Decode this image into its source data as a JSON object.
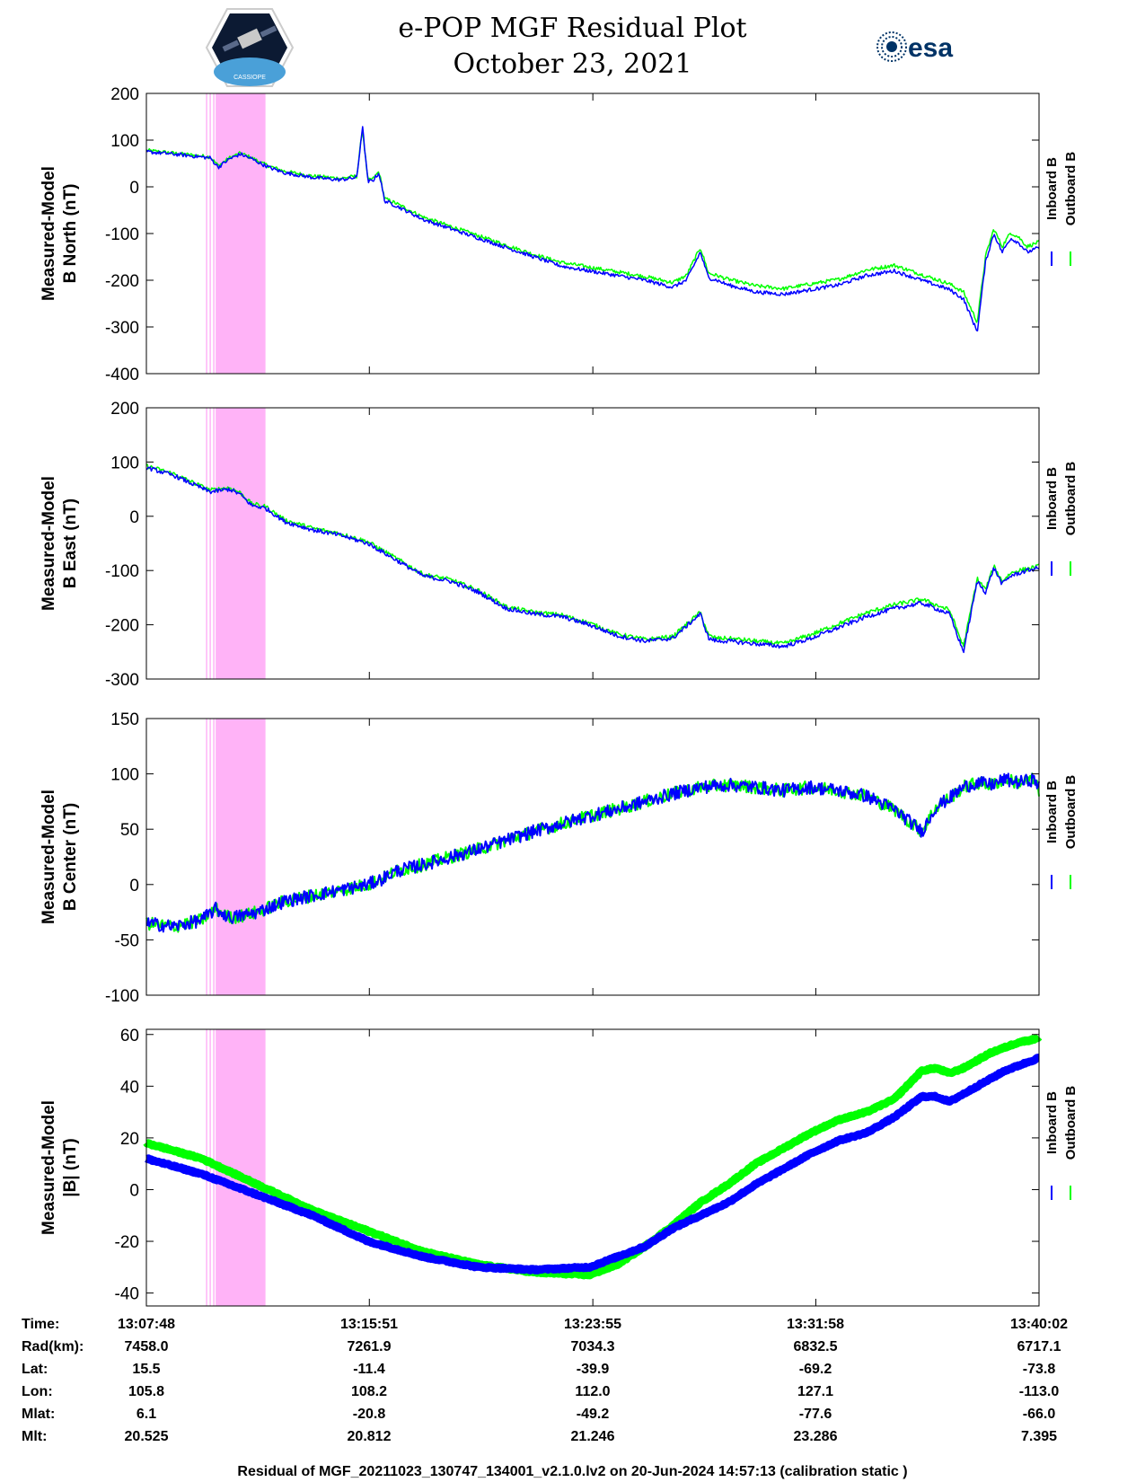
{
  "header": {
    "title_line1": "e-POP MGF Residual Plot",
    "title_line2": "October 23, 2021",
    "left_logo": "cassiope-mission-logo",
    "left_logo_text": "CASSIOPE",
    "right_logo": "esa-logo",
    "right_logo_text": "esa"
  },
  "colors": {
    "inboard": "#0000ff",
    "outboard": "#00ff00",
    "shade": "#ffb3f7"
  },
  "info_table": {
    "labels": [
      "Time:",
      "Rad(km):",
      "Lat:",
      "Lon:",
      "Mlat:",
      "Mlt:"
    ],
    "columns": [
      [
        "13:07:48",
        "7458.0",
        "15.5",
        "105.8",
        "6.1",
        "20.525"
      ],
      [
        "13:15:51",
        "7261.9",
        "-11.4",
        "108.2",
        "-20.8",
        "20.812"
      ],
      [
        "13:23:55",
        "7034.3",
        "-39.9",
        "112.0",
        "-49.2",
        "21.246"
      ],
      [
        "13:31:58",
        "6832.5",
        "-69.2",
        "127.1",
        "-77.6",
        "23.286"
      ],
      [
        "13:40:02",
        "6717.1",
        "-73.8",
        "-113.0",
        "-66.0",
        "7.395"
      ]
    ]
  },
  "footer": "Residual of MGF_20211023_130747_134001_v2.1.0.lv2 on 20-Jun-2024 14:57:13 (calibration static )",
  "chart_data": [
    {
      "type": "line",
      "ylabel_line1": "Measured-Model",
      "ylabel_line2": "B North (nT)",
      "ylim": [
        -400,
        200
      ],
      "yticks": [
        200,
        100,
        0,
        -100,
        -200,
        -300,
        -400
      ],
      "x_minutes": [
        0,
        8.05,
        16.12,
        24.17,
        32.23
      ],
      "legend": [
        "Inboard B",
        "Outboard B"
      ],
      "shaded_interval_min": [
        2.5,
        4.3
      ],
      "x": [
        0,
        1.0,
        2.3,
        2.6,
        3.0,
        3.4,
        3.8,
        4.2,
        4.5,
        5.0,
        6.0,
        7.0,
        7.6,
        7.8,
        8.0,
        8.2,
        8.4,
        8.6,
        9.0,
        10.0,
        11.0,
        12.0,
        13.0,
        14.0,
        15.0,
        16.0,
        17.0,
        18.0,
        19.0,
        19.5,
        20.0,
        20.3,
        20.6,
        21.0,
        22.0,
        23.0,
        24.0,
        25.0,
        26.0,
        27.0,
        28.0,
        29.0,
        29.5,
        30.0,
        30.3,
        30.6,
        30.9,
        31.2,
        31.5,
        31.8,
        32.23
      ],
      "series": [
        {
          "name": "Inboard B",
          "values": [
            75,
            70,
            62,
            42,
            60,
            70,
            60,
            48,
            40,
            30,
            20,
            15,
            20,
            130,
            10,
            15,
            30,
            -30,
            -40,
            -70,
            -90,
            -110,
            -130,
            -150,
            -170,
            -180,
            -190,
            -200,
            -215,
            -200,
            -140,
            -195,
            -200,
            -210,
            -225,
            -230,
            -220,
            -210,
            -190,
            -180,
            -200,
            -220,
            -240,
            -310,
            -160,
            -100,
            -140,
            -110,
            -120,
            -140,
            -130
          ]
        },
        {
          "name": "Outboard B",
          "values": [
            78,
            72,
            64,
            45,
            62,
            72,
            62,
            50,
            43,
            33,
            23,
            18,
            23,
            125,
            13,
            18,
            33,
            -25,
            -35,
            -65,
            -85,
            -105,
            -125,
            -145,
            -162,
            -172,
            -182,
            -192,
            -205,
            -190,
            -130,
            -185,
            -190,
            -198,
            -212,
            -218,
            -208,
            -198,
            -178,
            -168,
            -188,
            -208,
            -225,
            -290,
            -148,
            -90,
            -128,
            -98,
            -108,
            -128,
            -118
          ]
        }
      ]
    },
    {
      "type": "line",
      "ylabel_line1": "Measured-Model",
      "ylabel_line2": "B East (nT)",
      "ylim": [
        -300,
        200
      ],
      "yticks": [
        200,
        100,
        0,
        -100,
        -200,
        -300
      ],
      "x_minutes": [
        0,
        8.05,
        16.12,
        24.17,
        32.23
      ],
      "legend": [
        "Inboard B",
        "Outboard B"
      ],
      "shaded_interval_min": [
        2.5,
        4.3
      ],
      "x": [
        0,
        1.0,
        2.3,
        3.0,
        3.4,
        3.8,
        4.3,
        5.0,
        6.0,
        7.0,
        8.0,
        9.0,
        10.0,
        11.0,
        12.0,
        13.0,
        14.0,
        15.0,
        16.0,
        17.0,
        18.0,
        19.0,
        20.0,
        20.3,
        20.6,
        21.0,
        22.0,
        23.0,
        24.0,
        25.0,
        26.0,
        27.0,
        28.0,
        29.0,
        29.5,
        30.0,
        30.3,
        30.6,
        30.9,
        31.2,
        31.5,
        31.8,
        32.23
      ],
      "series": [
        {
          "name": "Inboard B",
          "values": [
            90,
            75,
            45,
            50,
            40,
            20,
            15,
            -10,
            -25,
            -35,
            -50,
            -80,
            -110,
            -120,
            -140,
            -170,
            -180,
            -185,
            -200,
            -220,
            -230,
            -225,
            -180,
            -225,
            -230,
            -230,
            -235,
            -240,
            -225,
            -205,
            -185,
            -170,
            -160,
            -180,
            -250,
            -120,
            -140,
            -95,
            -125,
            -110,
            -105,
            -100,
            -95
          ]
        },
        {
          "name": "Outboard B",
          "values": [
            93,
            78,
            48,
            53,
            43,
            23,
            18,
            -7,
            -22,
            -32,
            -47,
            -77,
            -107,
            -117,
            -137,
            -167,
            -177,
            -182,
            -197,
            -217,
            -227,
            -222,
            -177,
            -220,
            -225,
            -225,
            -230,
            -235,
            -218,
            -198,
            -178,
            -163,
            -153,
            -173,
            -240,
            -115,
            -135,
            -92,
            -120,
            -105,
            -100,
            -97,
            -92
          ]
        }
      ]
    },
    {
      "type": "line",
      "ylabel_line1": "Measured-Model",
      "ylabel_line2": "B Center (nT)",
      "ylim": [
        -100,
        150
      ],
      "yticks": [
        150,
        100,
        50,
        0,
        -50,
        -100
      ],
      "x_minutes": [
        0,
        8.05,
        16.12,
        24.17,
        32.23
      ],
      "legend": [
        "Inboard B",
        "Outboard B"
      ],
      "shaded_interval_min": [
        2.5,
        4.3
      ],
      "x": [
        0,
        1.0,
        2.0,
        2.5,
        3.0,
        3.5,
        4.0,
        4.5,
        5.0,
        6.0,
        7.0,
        8.0,
        8.5,
        9.0,
        10.0,
        11.0,
        12.0,
        13.0,
        14.0,
        15.0,
        16.0,
        17.0,
        18.0,
        19.0,
        20.0,
        21.0,
        22.0,
        23.0,
        24.0,
        25.0,
        26.0,
        27.0,
        27.5,
        28.0,
        28.5,
        29.0,
        29.5,
        30.0,
        30.5,
        31.0,
        31.5,
        32.0,
        32.23
      ],
      "series": [
        {
          "name": "Inboard B",
          "values": [
            -35,
            -38,
            -32,
            -22,
            -30,
            -28,
            -25,
            -20,
            -15,
            -10,
            -5,
            0,
            5,
            12,
            18,
            25,
            32,
            40,
            48,
            55,
            62,
            68,
            75,
            82,
            88,
            90,
            88,
            85,
            88,
            85,
            80,
            68,
            58,
            48,
            70,
            78,
            88,
            92,
            90,
            95,
            92,
            95,
            90
          ]
        },
        {
          "name": "Outboard B",
          "values": [
            -35,
            -38,
            -32,
            -22,
            -30,
            -28,
            -25,
            -20,
            -15,
            -10,
            -5,
            0,
            5,
            12,
            18,
            25,
            32,
            40,
            48,
            55,
            62,
            68,
            75,
            82,
            88,
            90,
            88,
            85,
            88,
            85,
            80,
            68,
            58,
            48,
            70,
            78,
            88,
            92,
            90,
            95,
            92,
            95,
            85
          ]
        }
      ]
    },
    {
      "type": "line",
      "ylabel_line1": "Measured-Model",
      "ylabel_line2": "|B| (nT)",
      "ylim": [
        -45,
        62
      ],
      "yticks": [
        60,
        40,
        20,
        0,
        -20,
        -40
      ],
      "x_minutes": [
        0,
        8.05,
        16.12,
        24.17,
        32.23
      ],
      "legend": [
        "Inboard B",
        "Outboard B"
      ],
      "shaded_interval_min": [
        2.5,
        4.3
      ],
      "x": [
        0,
        2,
        4,
        6,
        8,
        10,
        12,
        14,
        16,
        17,
        18,
        19,
        20,
        21,
        22,
        23,
        24,
        25,
        26,
        27,
        28,
        28.5,
        29,
        29.5,
        30,
        30.5,
        31,
        31.5,
        32,
        32.23
      ],
      "series": [
        {
          "name": "Inboard B",
          "values": [
            12,
            6,
            -2,
            -10,
            -20,
            -26,
            -30,
            -31,
            -30,
            -26,
            -22,
            -15,
            -10,
            -5,
            2,
            8,
            14,
            19,
            22,
            28,
            36,
            36,
            34,
            37,
            40,
            43,
            46,
            48,
            50,
            51
          ]
        },
        {
          "name": "Outboard B",
          "values": [
            18,
            12,
            2,
            -8,
            -16,
            -24,
            -29,
            -32,
            -33,
            -29,
            -22,
            -14,
            -5,
            2,
            10,
            16,
            22,
            27,
            30,
            35,
            46,
            47,
            45,
            47,
            50,
            53,
            55,
            57,
            58,
            59
          ]
        }
      ]
    }
  ]
}
